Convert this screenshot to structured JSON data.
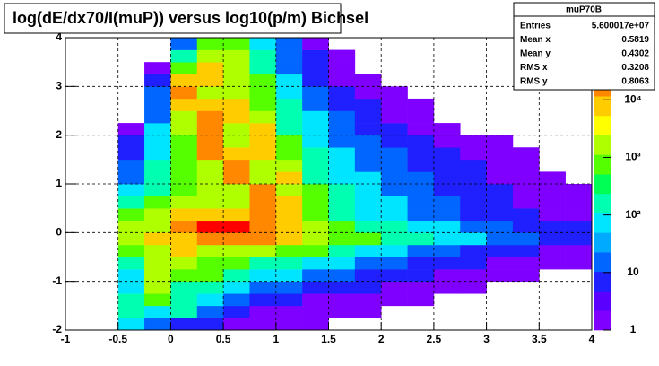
{
  "chart_data": {
    "type": "heatmap",
    "title": "log(dE/dx70/I(muP)) versus log10(p/m) Bichsel",
    "xlim": [
      -1,
      4
    ],
    "ylim": [
      -2,
      4
    ],
    "zlim": [
      1,
      120000
    ],
    "zlog": true,
    "grid": true,
    "xticks": [
      -1,
      -0.5,
      0,
      0.5,
      1,
      1.5,
      2,
      2.5,
      3,
      3.5,
      4
    ],
    "yticks": [
      -2,
      -1,
      0,
      1,
      2,
      3,
      4
    ],
    "zticks": [
      1,
      10,
      {
        "value": 100,
        "label": "10²"
      },
      {
        "value": 1000,
        "label": "10³"
      },
      {
        "value": 10000,
        "label": "10⁴"
      }
    ],
    "palette": [
      "#7f00ff",
      "#5a00ff",
      "#2020ff",
      "#0066ff",
      "#00aaff",
      "#00e5ff",
      "#00ffb0",
      "#00ff55",
      "#55ff00",
      "#b0ff00",
      "#ffff00",
      "#ffcc00",
      "#ff8800",
      "#ff4400",
      "#ff0000"
    ],
    "xbins": [
      -1,
      -0.75,
      -0.5,
      -0.25,
      0,
      0.25,
      0.5,
      0.75,
      1,
      1.25,
      1.5,
      1.75,
      2,
      2.25,
      2.5,
      2.75,
      3,
      3.25,
      3.5,
      3.75,
      4
    ],
    "ybins": [
      -2,
      -1.75,
      -1.5,
      -1.25,
      -1,
      -0.75,
      -0.5,
      -0.25,
      0,
      0.25,
      0.5,
      0.75,
      1,
      1.25,
      1.5,
      1.75,
      2,
      2.25,
      2.5,
      2.75,
      3,
      3.25,
      3.5,
      3.75,
      4
    ],
    "z": [
      [
        null,
        null,
        60,
        20,
        5,
        5,
        2,
        2,
        2,
        2,
        null,
        null,
        null,
        null,
        null,
        null,
        null,
        null,
        null,
        null
      ],
      [
        null,
        null,
        200,
        60,
        200,
        20,
        5,
        2,
        2,
        2,
        2,
        2,
        null,
        null,
        null,
        null,
        null,
        null,
        null,
        null
      ],
      [
        null,
        null,
        200,
        600,
        200,
        60,
        20,
        5,
        5,
        2,
        2,
        2,
        2,
        2,
        null,
        null,
        null,
        null,
        null,
        null
      ],
      [
        null,
        null,
        60,
        2000,
        200,
        200,
        60,
        20,
        20,
        5,
        5,
        5,
        2,
        2,
        2,
        2,
        null,
        null,
        null,
        null
      ],
      [
        null,
        null,
        60,
        2000,
        600,
        600,
        200,
        60,
        60,
        20,
        20,
        5,
        5,
        5,
        2,
        2,
        2,
        2,
        null,
        null
      ],
      [
        null,
        null,
        200,
        2000,
        2000,
        600,
        600,
        200,
        200,
        60,
        60,
        20,
        20,
        5,
        5,
        5,
        2,
        2,
        2,
        2
      ],
      [
        null,
        null,
        600,
        2000,
        6000,
        2000,
        2000,
        2000,
        600,
        600,
        200,
        60,
        60,
        20,
        20,
        5,
        5,
        5,
        2,
        2
      ],
      [
        null,
        null,
        2000,
        6000,
        6000,
        20000,
        20000,
        20000,
        6000,
        2000,
        600,
        600,
        200,
        200,
        60,
        60,
        20,
        20,
        5,
        5
      ],
      [
        null,
        null,
        2000,
        2000,
        20000,
        60000,
        60000,
        20000,
        6000,
        2000,
        600,
        200,
        200,
        60,
        60,
        20,
        20,
        5,
        5,
        5
      ],
      [
        null,
        null,
        600,
        2000,
        6000,
        6000,
        6000,
        20000,
        6000,
        600,
        200,
        60,
        60,
        20,
        20,
        5,
        5,
        5,
        2,
        2
      ],
      [
        null,
        null,
        200,
        600,
        2000,
        2000,
        2000,
        20000,
        6000,
        600,
        200,
        60,
        60,
        20,
        20,
        5,
        5,
        2,
        2,
        2
      ],
      [
        null,
        null,
        60,
        200,
        600,
        2000,
        2000,
        20000,
        2000,
        600,
        200,
        60,
        20,
        20,
        5,
        5,
        5,
        2,
        2,
        2
      ],
      [
        null,
        null,
        20,
        200,
        600,
        2000,
        20000,
        2000,
        6000,
        200,
        60,
        60,
        20,
        20,
        5,
        5,
        2,
        2,
        2,
        null
      ],
      [
        null,
        null,
        20,
        200,
        600,
        2000,
        20000,
        2000,
        2000,
        200,
        60,
        20,
        20,
        5,
        5,
        5,
        2,
        2,
        null,
        null
      ],
      [
        null,
        null,
        5,
        60,
        600,
        20000,
        6000,
        6000,
        600,
        200,
        60,
        20,
        20,
        5,
        5,
        2,
        2,
        2,
        null,
        null
      ],
      [
        null,
        null,
        5,
        60,
        600,
        20000,
        2000,
        6000,
        600,
        60,
        20,
        20,
        5,
        5,
        2,
        2,
        2,
        null,
        null,
        null
      ],
      [
        null,
        null,
        2,
        60,
        2000,
        20000,
        2000,
        6000,
        200,
        60,
        20,
        5,
        5,
        2,
        2,
        null,
        null,
        null,
        null,
        null
      ],
      [
        null,
        null,
        null,
        20,
        2000,
        20000,
        6000,
        2000,
        200,
        60,
        20,
        5,
        2,
        2,
        null,
        null,
        null,
        null,
        null,
        null
      ],
      [
        null,
        null,
        null,
        20,
        6000,
        6000,
        6000,
        600,
        200,
        20,
        5,
        5,
        2,
        2,
        null,
        null,
        null,
        null,
        null,
        null
      ],
      [
        null,
        null,
        null,
        20,
        20000,
        2000,
        2000,
        600,
        60,
        20,
        5,
        2,
        2,
        null,
        null,
        null,
        null,
        null,
        null,
        null
      ],
      [
        null,
        null,
        null,
        5,
        6000,
        6000,
        2000,
        600,
        60,
        5,
        2,
        2,
        null,
        null,
        null,
        null,
        null,
        null,
        null,
        null
      ],
      [
        null,
        null,
        null,
        2,
        600,
        6000,
        2000,
        200,
        20,
        5,
        2,
        null,
        null,
        null,
        null,
        null,
        null,
        null,
        null,
        null
      ],
      [
        null,
        null,
        null,
        null,
        200,
        2000,
        2000,
        200,
        20,
        5,
        2,
        null,
        null,
        null,
        null,
        null,
        null,
        null,
        null,
        null
      ],
      [
        null,
        null,
        null,
        null,
        20,
        600,
        600,
        60,
        20,
        2,
        null,
        null,
        null,
        null,
        null,
        null,
        null,
        null,
        null,
        null
      ]
    ],
    "stats": {
      "title": "muP70B",
      "rows": [
        {
          "label": "Entries",
          "value": "5.600017e+07"
        },
        {
          "label": "Mean x",
          "value": "0.5819"
        },
        {
          "label": "Mean y",
          "value": "0.4302"
        },
        {
          "label": "RMS x",
          "value": "0.3208"
        },
        {
          "label": "RMS y",
          "value": "0.8063"
        }
      ]
    }
  }
}
